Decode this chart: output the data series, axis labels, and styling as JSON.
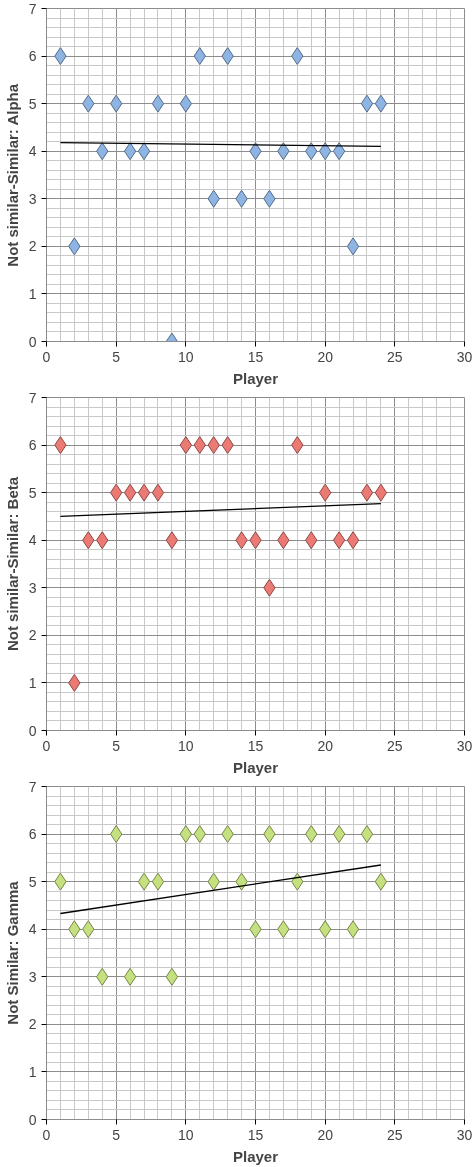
{
  "chart_data": [
    {
      "type": "scatter",
      "xlabel": "Player",
      "ylabel": "Not similar-Similar: Alpha",
      "xlim": [
        0,
        30
      ],
      "ylim": [
        0,
        7
      ],
      "xticks": [
        0,
        5,
        10,
        15,
        20,
        25,
        30
      ],
      "yticks": [
        0,
        1,
        2,
        3,
        4,
        5,
        6,
        7
      ],
      "grid": true,
      "series": [
        {
          "marker": "diamond",
          "color": "#8db4e3",
          "x": [
            1,
            2,
            3,
            4,
            5,
            6,
            7,
            8,
            9,
            10,
            11,
            12,
            13,
            14,
            15,
            16,
            17,
            18,
            19,
            20,
            21,
            22,
            23,
            24
          ],
          "values": [
            6,
            2,
            5,
            4,
            5,
            4,
            4,
            5,
            0,
            5,
            6,
            3,
            6,
            3,
            4,
            3,
            4,
            6,
            4,
            4,
            4,
            2,
            5,
            5
          ]
        },
        {
          "type": "line",
          "marker": "none",
          "color": "#000000",
          "x": [
            1,
            24
          ],
          "values": [
            4.18,
            4.1
          ]
        }
      ]
    },
    {
      "type": "scatter",
      "xlabel": "Player",
      "ylabel": "Not similar-Similar: Beta",
      "xlim": [
        0,
        30
      ],
      "ylim": [
        0,
        7
      ],
      "xticks": [
        0,
        5,
        10,
        15,
        20,
        25,
        30
      ],
      "yticks": [
        0,
        1,
        2,
        3,
        4,
        5,
        6,
        7
      ],
      "grid": true,
      "series": [
        {
          "marker": "diamond",
          "color": "#ec7a74",
          "x": [
            1,
            2,
            3,
            4,
            5,
            6,
            7,
            8,
            9,
            10,
            11,
            12,
            13,
            14,
            15,
            16,
            17,
            18,
            19,
            20,
            21,
            22,
            23,
            24
          ],
          "values": [
            6,
            1,
            4,
            4,
            5,
            5,
            5,
            5,
            4,
            6,
            6,
            6,
            6,
            4,
            4,
            3,
            4,
            6,
            4,
            5,
            4,
            4,
            5,
            5
          ]
        },
        {
          "type": "line",
          "marker": "none",
          "color": "#000000",
          "x": [
            1,
            24
          ],
          "values": [
            4.5,
            4.77
          ]
        }
      ]
    },
    {
      "type": "scatter",
      "xlabel": "Player",
      "ylabel": "Not Similar: Gamma",
      "xlim": [
        0,
        30
      ],
      "ylim": [
        0,
        7
      ],
      "xticks": [
        0,
        5,
        10,
        15,
        20,
        25,
        30
      ],
      "yticks": [
        0,
        1,
        2,
        3,
        4,
        5,
        6,
        7
      ],
      "grid": true,
      "series": [
        {
          "marker": "diamond",
          "color": "#c5e07e",
          "x": [
            1,
            2,
            3,
            4,
            5,
            6,
            7,
            8,
            9,
            10,
            11,
            12,
            13,
            14,
            15,
            16,
            17,
            18,
            19,
            20,
            21,
            22,
            23,
            24
          ],
          "values": [
            5,
            4,
            4,
            3,
            6,
            3,
            5,
            5,
            3,
            6,
            6,
            5,
            6,
            5,
            4,
            6,
            4,
            5,
            6,
            4,
            6,
            4,
            6,
            5
          ]
        },
        {
          "type": "line",
          "marker": "none",
          "color": "#000000",
          "x": [
            1,
            24
          ],
          "values": [
            4.33,
            5.35
          ]
        }
      ]
    }
  ]
}
